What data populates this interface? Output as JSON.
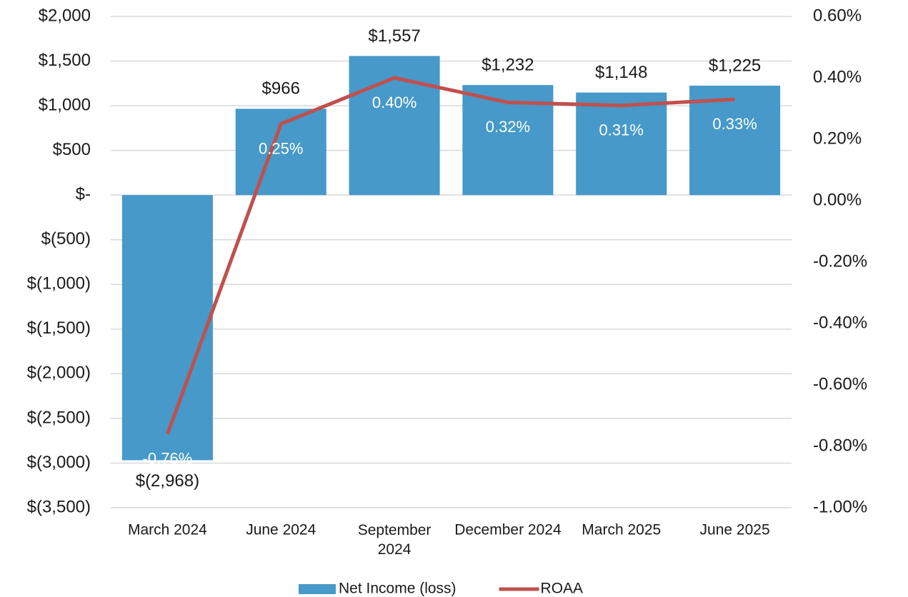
{
  "chart_data": {
    "type": "bar_line",
    "categories": [
      "March 2024",
      "June 2024",
      "September 2024",
      "December 2024",
      "March 2025",
      "June 2025"
    ],
    "series": [
      {
        "name": "Net Income (loss)",
        "type": "bar",
        "color": "#4699c9",
        "values": [
          -2968,
          966,
          1557,
          1232,
          1148,
          1225
        ],
        "value_labels": [
          "$(2,968)",
          "$966",
          "$1,557",
          "$1,232",
          "$1,148",
          "$1,225"
        ]
      },
      {
        "name": "ROAA",
        "type": "line",
        "axis": "y2",
        "color": "#c0504d",
        "values": [
          -0.76,
          0.25,
          0.4,
          0.32,
          0.31,
          0.33
        ],
        "value_labels": [
          "-0.76%",
          "0.25%",
          "0.40%",
          "0.32%",
          "0.31%",
          "0.33%"
        ]
      }
    ],
    "ylim": [
      -3500,
      2000
    ],
    "yticks": [
      {
        "value": 2000,
        "label": "$2,000"
      },
      {
        "value": 1500,
        "label": "$1,500"
      },
      {
        "value": 1000,
        "label": "$1,000"
      },
      {
        "value": 500,
        "label": "$500"
      },
      {
        "value": 0,
        "label": "$-"
      },
      {
        "value": -500,
        "label": "$(500)"
      },
      {
        "value": -1000,
        "label": "$(1,000)"
      },
      {
        "value": -1500,
        "label": "$(1,500)"
      },
      {
        "value": -2000,
        "label": "$(2,000)"
      },
      {
        "value": -2500,
        "label": "$(2,500)"
      },
      {
        "value": -3000,
        "label": "$(3,000)"
      },
      {
        "value": -3500,
        "label": "$(3,500)"
      }
    ],
    "y2lim": [
      -1.0,
      0.6
    ],
    "y2ticks": [
      {
        "value": 0.6,
        "label": "0.60%"
      },
      {
        "value": 0.4,
        "label": "0.40%"
      },
      {
        "value": 0.2,
        "label": "0.20%"
      },
      {
        "value": 0,
        "label": "0.00%"
      },
      {
        "value": -0.2,
        "label": "-0.20%"
      },
      {
        "value": -0.4,
        "label": "-0.40%"
      },
      {
        "value": -0.6,
        "label": "-0.60%"
      },
      {
        "value": -0.8,
        "label": "-0.80%"
      },
      {
        "value": -1.0,
        "label": "-1.00%"
      }
    ],
    "grid": true,
    "legend": "bottom"
  }
}
